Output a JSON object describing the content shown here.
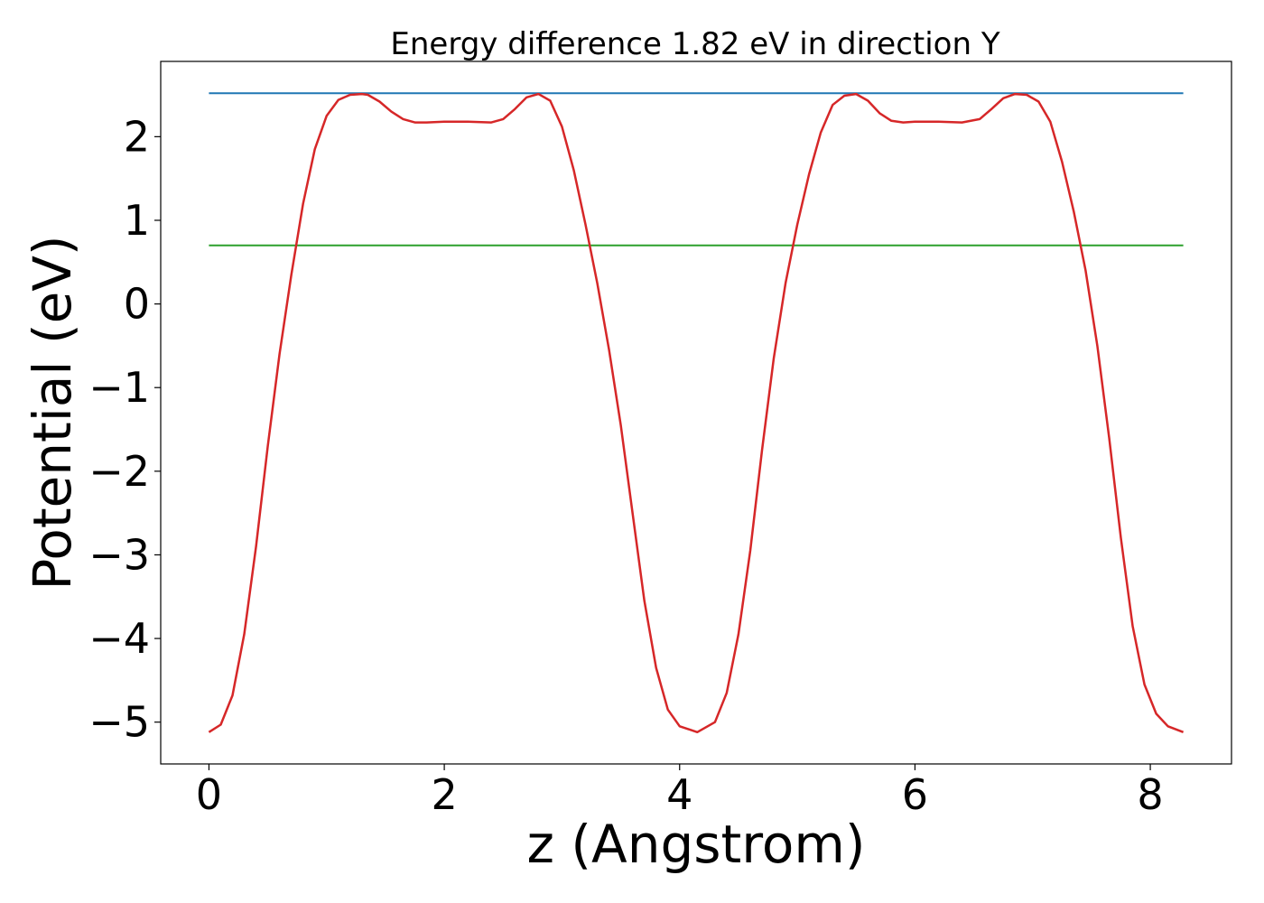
{
  "chart_data": {
    "type": "line",
    "title": "Energy difference 1.82 eV in direction Y",
    "xlabel": "z (Angstrom)",
    "ylabel": "Potential (eV)",
    "xlim": [
      -0.41,
      8.69
    ],
    "ylim": [
      -5.5,
      2.9
    ],
    "xticks": [
      0,
      2,
      4,
      6,
      8
    ],
    "xtick_labels": [
      "0",
      "2",
      "4",
      "6",
      "8"
    ],
    "yticks": [
      -5,
      -4,
      -3,
      -2,
      -1,
      0,
      1,
      2
    ],
    "ytick_labels": [
      "−5",
      "−4",
      "−3",
      "−2",
      "−1",
      "0",
      "1",
      "2"
    ],
    "grid": false,
    "legend": "none",
    "series": [
      {
        "color": "#d62728",
        "x": [
          0.0,
          0.1,
          0.2,
          0.3,
          0.4,
          0.5,
          0.6,
          0.7,
          0.8,
          0.9,
          1.0,
          1.1,
          1.2,
          1.3,
          1.35,
          1.45,
          1.55,
          1.65,
          1.75,
          1.85,
          2.0,
          2.2,
          2.4,
          2.5,
          2.6,
          2.7,
          2.8,
          2.9,
          3.0,
          3.1,
          3.2,
          3.3,
          3.4,
          3.5,
          3.6,
          3.7,
          3.8,
          3.9,
          4.0,
          4.15,
          4.3,
          4.4,
          4.5,
          4.6,
          4.7,
          4.8,
          4.9,
          5.0,
          5.1,
          5.2,
          5.3,
          5.4,
          5.5,
          5.6,
          5.7,
          5.8,
          5.9,
          6.0,
          6.2,
          6.4,
          6.55,
          6.65,
          6.75,
          6.85,
          6.95,
          7.05,
          7.15,
          7.25,
          7.35,
          7.45,
          7.55,
          7.65,
          7.75,
          7.85,
          7.95,
          8.05,
          8.15,
          8.28
        ],
        "y": [
          -5.12,
          -5.03,
          -4.68,
          -3.95,
          -2.9,
          -1.7,
          -0.6,
          0.35,
          1.2,
          1.85,
          2.25,
          2.44,
          2.5,
          2.51,
          2.5,
          2.42,
          2.3,
          2.21,
          2.17,
          2.17,
          2.18,
          2.18,
          2.17,
          2.21,
          2.33,
          2.47,
          2.51,
          2.43,
          2.12,
          1.6,
          0.95,
          0.25,
          -0.55,
          -1.45,
          -2.5,
          -3.55,
          -4.35,
          -4.85,
          -5.05,
          -5.12,
          -5.0,
          -4.65,
          -3.95,
          -2.95,
          -1.75,
          -0.65,
          0.25,
          0.95,
          1.55,
          2.05,
          2.38,
          2.49,
          2.51,
          2.43,
          2.28,
          2.19,
          2.17,
          2.18,
          2.18,
          2.17,
          2.21,
          2.33,
          2.46,
          2.51,
          2.5,
          2.42,
          2.18,
          1.7,
          1.1,
          0.4,
          -0.5,
          -1.6,
          -2.8,
          -3.85,
          -4.55,
          -4.9,
          -5.05,
          -5.12
        ]
      },
      {
        "color": "#1f77b4",
        "x": [
          0.0,
          8.28
        ],
        "y": [
          2.52,
          2.52
        ]
      },
      {
        "color": "#2ca02c",
        "x": [
          0.0,
          8.28
        ],
        "y": [
          0.7,
          0.7
        ]
      }
    ]
  }
}
